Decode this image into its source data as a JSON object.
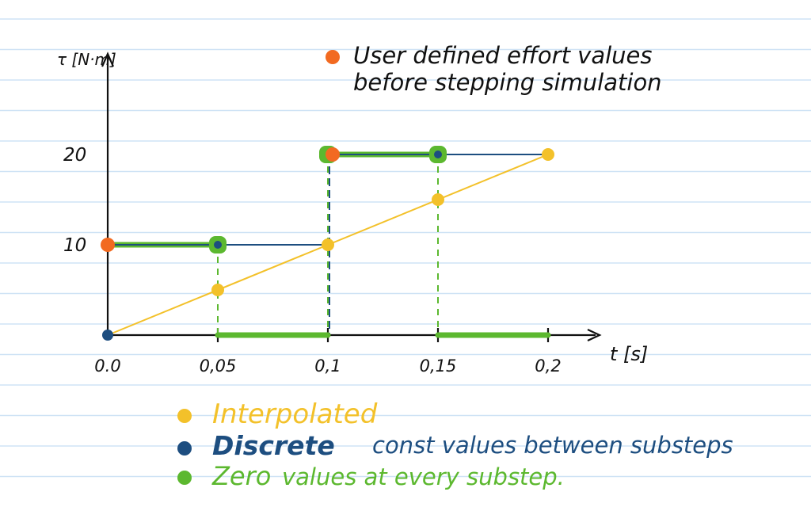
{
  "chart_data": {
    "type": "line",
    "title": "",
    "xlabel": "t [s]",
    "ylabel": "τ [N·m]",
    "x_ticks": [
      0.0,
      0.05,
      0.1,
      0.15,
      0.2
    ],
    "x_tick_labels": [
      "0.0",
      "0,05",
      "0,1",
      "0,15",
      "0,2"
    ],
    "y_ticks": [
      10,
      20
    ],
    "y_tick_labels": [
      "10",
      "20"
    ],
    "xlim": [
      0,
      0.24
    ],
    "ylim": [
      0,
      26
    ],
    "grid": true,
    "legend_position": "bottom-left",
    "user_points": {
      "name": "User defined effort values before stepping simulation",
      "color": "#f26a21",
      "x": [
        0.0,
        0.1
      ],
      "y": [
        10,
        20
      ]
    },
    "series": [
      {
        "name": "Interpolated",
        "color": "#f3c12a",
        "x": [
          0.0,
          0.05,
          0.1,
          0.15,
          0.2
        ],
        "y": [
          0,
          5,
          10,
          15,
          20
        ]
      },
      {
        "name": "Discrete",
        "note": "const values between substeps",
        "color": "#1d4e80",
        "x": [
          0.0,
          0.05,
          0.1,
          0.15,
          0.2
        ],
        "y": [
          10,
          10,
          20,
          20,
          20
        ]
      },
      {
        "name": "Zero",
        "note": "values at every substep.",
        "color": "#5cb82f",
        "segments": [
          {
            "x": [
              0.0,
              0.05
            ],
            "y": 10
          },
          {
            "x": [
              0.05,
              0.1
            ],
            "y": 0
          },
          {
            "x": [
              0.1,
              0.15
            ],
            "y": 20
          },
          {
            "x": [
              0.15,
              0.2
            ],
            "y": 0
          }
        ]
      }
    ]
  },
  "annotation": {
    "line1": "User defined effort values",
    "line2": "before stepping simulation"
  },
  "legend": {
    "interpolated": "Interpolated",
    "discrete": "Discrete",
    "discrete_note": "const values between substeps",
    "zero": "Zero",
    "zero_note": "values at every substep."
  },
  "colors": {
    "ruled_line": "#cfe3f5",
    "axis": "#111111",
    "orange": "#f26a21",
    "yellow": "#f3c12a",
    "blue": "#1d4e80",
    "green": "#5cb82f"
  }
}
